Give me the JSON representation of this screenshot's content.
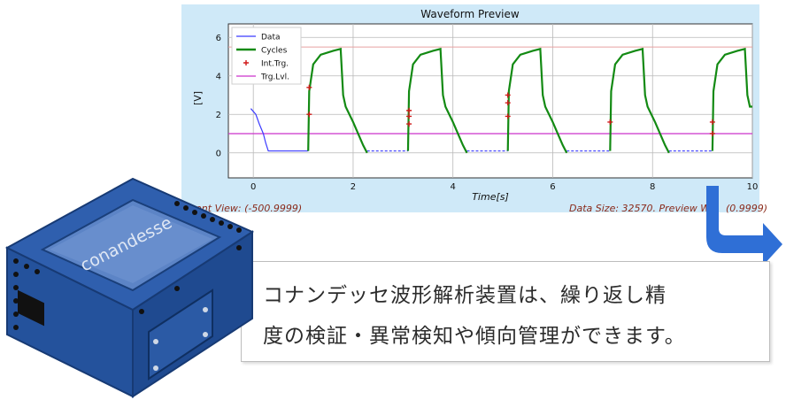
{
  "preview": {
    "title": "Waveform Preview",
    "status_left": "urrent View: (-500.9999)",
    "status_right": "Data Size: 32570. Preview Win",
    "status_right_tail": "(0.9999)"
  },
  "chart_data": {
    "type": "line",
    "title": "Waveform Preview",
    "xlabel": "Time[s]",
    "ylabel": "[V]",
    "xlim": [
      -0.5,
      10
    ],
    "ylim": [
      -1.3,
      6.7
    ],
    "xticks": [
      "0",
      "2",
      "4",
      "6",
      "8",
      "10"
    ],
    "yticks": [
      "0",
      "2",
      "4",
      "6"
    ],
    "grid": true,
    "legend_position": "top-left",
    "legend": [
      "Data",
      "Cycles",
      "Int.Trg.",
      "Trg.Lvl."
    ],
    "trigger_level": 1.0,
    "upper_threshold": 5.5,
    "series": [
      {
        "name": "Data",
        "color": "#3b3bff",
        "x": [
          -0.05,
          0.05,
          0.12,
          0.2,
          0.25,
          0.3,
          1.1
        ],
        "y": [
          2.3,
          2.0,
          1.5,
          1.0,
          0.5,
          0.1,
          0.1
        ]
      },
      {
        "name": "Cycles",
        "color": "#138a13",
        "x": [
          1.1,
          1.12,
          1.2,
          1.35,
          1.6,
          1.75,
          1.8,
          1.85,
          2.0,
          2.2,
          2.28
        ],
        "y": [
          0.1,
          3.2,
          4.6,
          5.1,
          5.3,
          5.4,
          3.0,
          2.4,
          1.6,
          0.4,
          0.0
        ]
      },
      {
        "name": "Int.Trg.",
        "color": "#d01818",
        "x": [
          1.12,
          1.12,
          3.12,
          3.12,
          3.12,
          5.1,
          5.1,
          5.1,
          7.15,
          9.2,
          9.2
        ],
        "y": [
          3.4,
          2.0,
          2.2,
          1.9,
          1.5,
          3.0,
          2.6,
          1.9,
          1.6,
          1.6,
          1.0
        ]
      },
      {
        "name": "Trg.Lvl.",
        "color": "#cc33cc",
        "x": [
          -0.5,
          10
        ],
        "y": [
          1.0,
          1.0
        ]
      }
    ],
    "cycle_starts": [
      1.1,
      3.1,
      5.1,
      7.15,
      9.2
    ]
  },
  "callout": {
    "line1": "コナンデッセ波形解析装置は、繰り返し精",
    "line2": "度の検証・異常検知や傾向管理ができます。"
  },
  "device": {
    "brand": "conandesse"
  },
  "colors": {
    "preview_bg": "#cfe9f8",
    "device_blue": "#2f5fae",
    "arrow_blue": "#2f6fd6"
  }
}
